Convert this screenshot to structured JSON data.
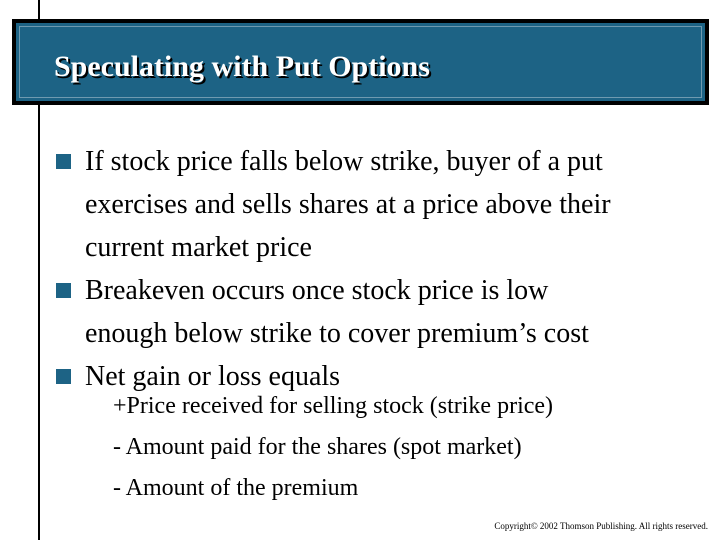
{
  "slide": {
    "title": "Speculating with Put Options",
    "bullets": [
      {
        "lines": [
          "If stock price falls below strike, buyer of a put",
          "exercises and sells shares at a price above their",
          "current market price"
        ]
      },
      {
        "lines": [
          "Breakeven occurs once stock price is low",
          "enough below strike to cover premium’s cost"
        ]
      },
      {
        "lines": [
          "Net gain or loss equals"
        ]
      }
    ],
    "sub_lines": [
      "+Price received for selling stock (strike price)",
      "- Amount paid for the shares (spot market)",
      "- Amount of the premium"
    ],
    "copyright": "Copyright© 2002 Thomson Publishing. All rights reserved."
  },
  "colors": {
    "title_background": "#1d6385",
    "title_text": "#ffffff",
    "bullet_marker": "#1d6385"
  },
  "icons": {
    "bullet_marker": "square-bullet-icon"
  }
}
